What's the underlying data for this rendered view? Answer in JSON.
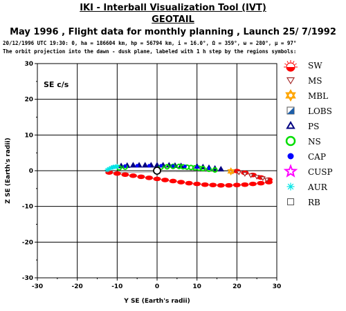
{
  "header": {
    "title": "IKI - Interball Visualization Tool (IVT)",
    "subtitle": "GEOTAIL",
    "line3": "May      1996 ,  Flight data for monthly planning ,   Launch 25/ 7/1992",
    "line4": "20/12/1996 UTC 19:30: 0, ha = 186604 km, hp = 56794 km, i = 16.0°, Ω = 359°, ω = 280°, μ = 97°",
    "line5": "The orbit projection into the dawn - dusk plane, labeled with 1 h step by the regions symbols:"
  },
  "chart_data": {
    "type": "scatter",
    "frame_label": "SE c/s",
    "xlabel": "Y SE (Earth's radii)",
    "ylabel": "Z SE (Earth's radii)",
    "xlim": [
      -30,
      30
    ],
    "ylim": [
      -30,
      30
    ],
    "xticks": [
      -30,
      -20,
      -10,
      0,
      10,
      20,
      30
    ],
    "yticks": [
      30,
      20,
      10,
      0,
      -10,
      -20,
      -30
    ],
    "grid": false,
    "legend_position": "right",
    "colors": {
      "SW": "#ff0000",
      "MS": "#a52a2a",
      "MBL": "#ffa500",
      "LOBS": "#1f5fa8",
      "PS": "#000080",
      "NS": "#00dd00",
      "CAP": "#0000ff",
      "CUSP": "#ff00ff",
      "AUR": "#00e5e5",
      "RB": "#000000"
    },
    "legend": [
      {
        "label": "SW",
        "icon": "sun-icon"
      },
      {
        "label": "MS",
        "icon": "triangle-down-icon"
      },
      {
        "label": "MBL",
        "icon": "star-of-david-icon"
      },
      {
        "label": "LOBS",
        "icon": "half-square-icon"
      },
      {
        "label": "PS",
        "icon": "triangle-up-icon"
      },
      {
        "label": "NS",
        "icon": "ring-icon"
      },
      {
        "label": "CAP",
        "icon": "filled-circle-icon"
      },
      {
        "label": "CUSP",
        "icon": "star-icon"
      },
      {
        "label": "AUR",
        "icon": "asterisk-icon"
      },
      {
        "label": "RB",
        "icon": "square-icon"
      }
    ],
    "series": [
      {
        "name": "SW",
        "marker": "sun",
        "x": [
          -12,
          -10,
          -8,
          -6,
          -4,
          -2,
          0,
          2,
          4,
          6,
          8,
          10,
          12,
          14,
          16,
          18,
          20,
          22,
          24,
          26,
          28,
          28,
          26,
          24,
          22,
          20
        ],
        "y": [
          -0.5,
          -0.8,
          -1.1,
          -1.4,
          -1.7,
          -2.0,
          -2.3,
          -2.6,
          -2.9,
          -3.2,
          -3.5,
          -3.7,
          -3.9,
          -4.0,
          -4.1,
          -4.1,
          -4.0,
          -3.9,
          -3.7,
          -3.5,
          -3.2,
          -2.5,
          -1.9,
          -1.2,
          -0.6,
          -0.1
        ]
      },
      {
        "name": "MS",
        "marker": "tri-down",
        "x": [
          19,
          20.5,
          22,
          23.5,
          25,
          26.5,
          27.5
        ],
        "y": [
          -0.2,
          -0.5,
          -0.9,
          -1.3,
          -1.7,
          -2.1,
          -2.5
        ]
      },
      {
        "name": "MBL",
        "marker": "star6",
        "x": [
          18.5
        ],
        "y": [
          -0.2
        ]
      },
      {
        "name": "PS",
        "marker": "tri-up",
        "x": [
          -9,
          -7.5,
          -6,
          -4.5,
          -3,
          -1.5,
          0,
          1.5,
          3,
          4.5,
          6,
          10,
          11.5,
          13,
          14.5,
          16
        ],
        "y": [
          1.3,
          1.4,
          1.5,
          1.5,
          1.5,
          1.5,
          1.5,
          1.5,
          1.5,
          1.4,
          1.3,
          1.2,
          1.0,
          0.8,
          0.6,
          0.4
        ]
      },
      {
        "name": "NS",
        "marker": "ring",
        "x": [
          -9.5,
          -8,
          1,
          2.5,
          4,
          5.5,
          6.5,
          7.5,
          8.5,
          9.5,
          10.5,
          11.5,
          13,
          14.5
        ],
        "y": [
          0.8,
          1.0,
          1.0,
          1.1,
          1.2,
          1.2,
          1.1,
          1.0,
          0.9,
          0.8,
          0.7,
          0.6,
          0.4,
          0.2
        ]
      },
      {
        "name": "CAP",
        "marker": "dot",
        "x": [
          -11,
          -8,
          -5,
          -2,
          1,
          4,
          7,
          10,
          13
        ],
        "y": [
          1.0,
          1.3,
          1.4,
          1.4,
          1.4,
          1.3,
          1.2,
          1.0,
          0.7
        ]
      },
      {
        "name": "AUR",
        "marker": "asterisk",
        "x": [
          -12.5,
          -12,
          -11.5,
          -11,
          -10.5,
          -10
        ],
        "y": [
          0.2,
          0.5,
          0.8,
          1.0,
          1.1,
          1.2
        ]
      },
      {
        "name": "RB",
        "marker": "earth",
        "x": [
          0
        ],
        "y": [
          0
        ]
      }
    ]
  }
}
